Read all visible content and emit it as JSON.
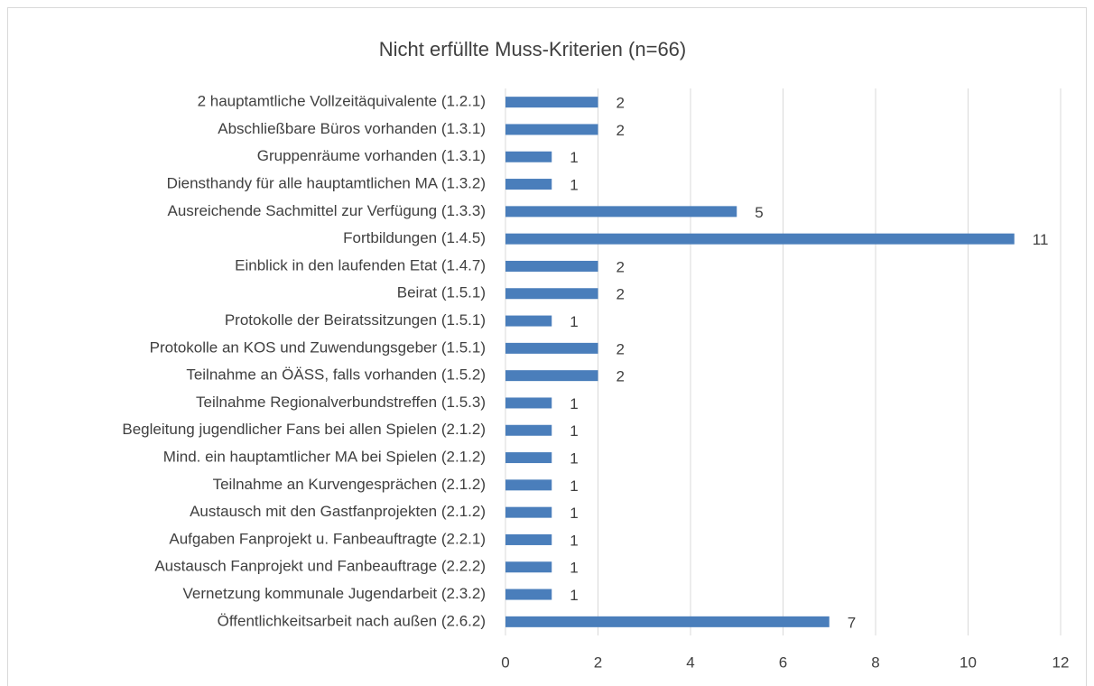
{
  "chart_data": {
    "type": "bar",
    "orientation": "horizontal",
    "title": "Nicht erfüllte Muss-Kriterien (n=66)",
    "categories": [
      "2 hauptamtliche Vollzeitäquivalente (1.2.1)",
      "Abschließbare Büros vorhanden (1.3.1)",
      "Gruppenräume vorhanden (1.3.1)",
      "Diensthandy für alle hauptamtlichen MA (1.3.2)",
      "Ausreichende Sachmittel zur Verfügung  (1.3.3)",
      "Fortbildungen (1.4.5)",
      "Einblick in den laufenden Etat (1.4.7)",
      "Beirat (1.5.1)",
      "Protokolle der Beiratssitzungen  (1.5.1)",
      "Protokolle an KOS und Zuwendungsgeber (1.5.1)",
      "Teilnahme an ÖÄSS, falls vorhanden (1.5.2)",
      "Teilnahme Regionalverbundstreffen (1.5.3)",
      "Begleitung jugendlicher Fans bei allen Spielen (2.1.2)",
      "Mind. ein hauptamtlicher MA bei Spielen (2.1.2)",
      "Teilnahme an Kurvengesprächen (2.1.2)",
      "Austausch mit den Gastfanprojekten (2.1.2)",
      "Aufgaben Fanprojekt u. Fanbeauftragte  (2.2.1)",
      "Austausch Fanprojekt und Fanbeauftrage (2.2.2)",
      "Vernetzung kommunale Jugendarbeit (2.3.2)",
      "Öffentlichkeitsarbeit nach außen (2.6.2)"
    ],
    "values": [
      2,
      2,
      1,
      1,
      5,
      11,
      2,
      2,
      1,
      2,
      2,
      1,
      1,
      1,
      1,
      1,
      1,
      1,
      1,
      7
    ],
    "color": "#4a7ebb",
    "xlim": [
      0,
      12
    ],
    "xticks": [
      0,
      2,
      4,
      6,
      8,
      10,
      12
    ],
    "grid": true
  }
}
